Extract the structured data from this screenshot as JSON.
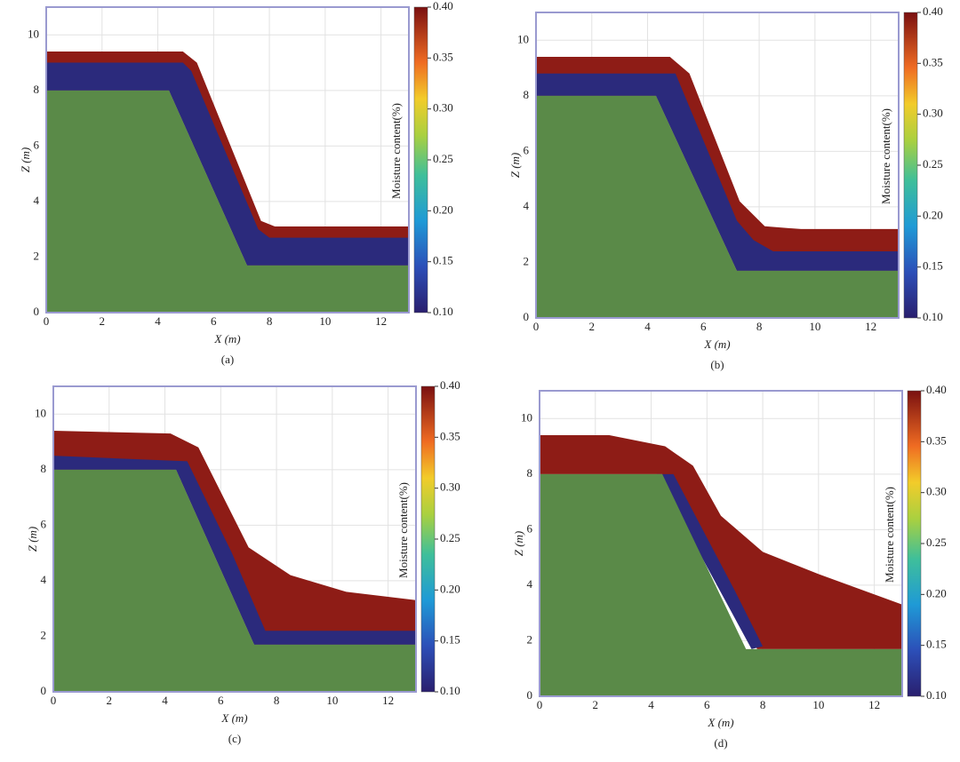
{
  "chart_data": [
    {
      "type": "area",
      "panel_label": "(a)",
      "xlabel": "X (m)",
      "ylabel": "Z (m)",
      "xlim": [
        0,
        13
      ],
      "xticks": [
        0,
        2,
        4,
        6,
        8,
        10,
        12
      ],
      "ylim": [
        0,
        11
      ],
      "yticks": [
        0,
        2,
        4,
        6,
        8,
        10
      ],
      "grid": true,
      "colorbar_label": "Moisture content(%)",
      "colorbar_lim": [
        0.1,
        0.4
      ],
      "colorbar_ticks": [
        {
          "value": 0.1,
          "label": "0.10"
        },
        0.15,
        {
          "value": 0.2,
          "label": "0.20"
        },
        0.25,
        {
          "value": 0.3,
          "label": "0.30"
        },
        0.35,
        {
          "value": 0.4,
          "label": "0.40"
        }
      ],
      "series": [
        {
          "color": "#8e1c16",
          "x": [
            0,
            0,
            4.9,
            5.4,
            7.7,
            8.2,
            13,
            13,
            7.2,
            4.4
          ],
          "values": [
            8,
            9.4,
            9.4,
            9,
            3.3,
            3.1,
            3.1,
            1.7,
            1.7,
            8
          ]
        },
        {
          "color": "#2b2a7c",
          "x": [
            0,
            0,
            4.9,
            5.2,
            7.6,
            8,
            13,
            13,
            7.2,
            4.4
          ],
          "values": [
            8,
            9,
            9,
            8.7,
            3,
            2.7,
            2.7,
            1.7,
            1.7,
            8
          ]
        },
        {
          "color": "#5a8a48",
          "x": [
            0,
            0,
            4.4,
            7.2,
            13,
            13
          ],
          "values": [
            0,
            8,
            8,
            1.7,
            1.7,
            0
          ]
        }
      ]
    },
    {
      "type": "area",
      "panel_label": "(b)",
      "xlabel": "X (m)",
      "ylabel": "Z (m)",
      "xlim": [
        0,
        13
      ],
      "xticks": [
        0,
        2,
        4,
        6,
        8,
        10,
        12
      ],
      "ylim": [
        0,
        11
      ],
      "yticks": [
        0,
        2,
        4,
        6,
        8,
        10
      ],
      "grid": true,
      "colorbar_label": "Moisture content(%)",
      "colorbar_lim": [
        0.1,
        0.4
      ],
      "colorbar_ticks": [
        {
          "value": 0.1,
          "label": "0.10"
        },
        0.15,
        {
          "value": 0.2,
          "label": "0.20"
        },
        0.25,
        {
          "value": 0.3,
          "label": "0.30"
        },
        0.35,
        {
          "value": 0.4,
          "label": "0.40"
        }
      ],
      "series": [
        {
          "color": "#8e1c16",
          "x": [
            0,
            0,
            4.8,
            5.5,
            7.3,
            8.2,
            9.5,
            13,
            13,
            7.2,
            4.3
          ],
          "values": [
            8,
            9.4,
            9.4,
            8.8,
            4.2,
            3.3,
            3.2,
            3.2,
            1.7,
            1.7,
            8
          ]
        },
        {
          "color": "#2b2a7c",
          "x": [
            0,
            0,
            5,
            7.2,
            7.8,
            8.5,
            13,
            13,
            7.2,
            4.3
          ],
          "values": [
            8,
            8.8,
            8.8,
            3.5,
            2.8,
            2.4,
            2.4,
            1.7,
            1.7,
            8
          ]
        },
        {
          "color": "#5a8a48",
          "x": [
            0,
            0,
            4.3,
            7.2,
            13,
            13
          ],
          "values": [
            0,
            8,
            8,
            1.7,
            1.7,
            0
          ]
        }
      ]
    },
    {
      "type": "area",
      "panel_label": "(c)",
      "xlabel": "X (m)",
      "ylabel": "Z (m)",
      "xlim": [
        0,
        13
      ],
      "xticks": [
        0,
        2,
        4,
        6,
        8,
        10,
        12
      ],
      "ylim": [
        0,
        11
      ],
      "yticks": [
        0,
        2,
        4,
        6,
        8,
        10
      ],
      "grid": true,
      "colorbar_label": "Moisture content(%)",
      "colorbar_lim": [
        0.1,
        0.4
      ],
      "colorbar_ticks": [
        {
          "value": 0.1,
          "label": "0.10"
        },
        0.15,
        {
          "value": 0.2,
          "label": "0.20"
        },
        0.25,
        {
          "value": 0.3,
          "label": "0.30"
        },
        0.35,
        {
          "value": 0.4,
          "label": "0.40"
        }
      ],
      "series": [
        {
          "color": "#8e1c16",
          "x": [
            0,
            0,
            4.2,
            5.2,
            6.2,
            7,
            8.5,
            10.5,
            13,
            13,
            7.2,
            4.4
          ],
          "values": [
            8,
            9.4,
            9.3,
            8.8,
            6.8,
            5.2,
            4.2,
            3.6,
            3.3,
            1.7,
            1.7,
            8
          ]
        },
        {
          "color": "#2b2a7c",
          "x": [
            0,
            0,
            4.8,
            6.4,
            7.6,
            8.2,
            13,
            13,
            7.2,
            4.4
          ],
          "values": [
            8,
            8.5,
            8.3,
            5,
            2.2,
            2.2,
            2.2,
            1.7,
            1.7,
            8
          ]
        },
        {
          "color": "#5a8a48",
          "x": [
            0,
            0,
            4.4,
            7.2,
            13,
            13
          ],
          "values": [
            0,
            8,
            8,
            1.7,
            1.7,
            0
          ]
        }
      ]
    },
    {
      "type": "area",
      "panel_label": "(d)",
      "xlabel": "X (m)",
      "ylabel": "Z (m)",
      "xlim": [
        0,
        13
      ],
      "xticks": [
        0,
        2,
        4,
        6,
        8,
        10,
        12
      ],
      "ylim": [
        0,
        11
      ],
      "yticks": [
        0,
        2,
        4,
        6,
        8,
        10
      ],
      "grid": true,
      "colorbar_label": "Moisture content(%)",
      "colorbar_lim": [
        0.1,
        0.4
      ],
      "colorbar_ticks": [
        {
          "value": 0.1,
          "label": "0.10"
        },
        0.15,
        {
          "value": 0.2,
          "label": "0.20"
        },
        0.25,
        {
          "value": 0.3,
          "label": "0.30"
        },
        0.35,
        {
          "value": 0.4,
          "label": "0.40"
        }
      ],
      "series": [
        {
          "color": "#8e1c16",
          "x": [
            0,
            0,
            2.5,
            4.5,
            5.5,
            6.5,
            8,
            10,
            13,
            13,
            7.8,
            4.4
          ],
          "values": [
            8,
            9.4,
            9.4,
            9,
            8.3,
            6.5,
            5.2,
            4.4,
            3.3,
            1.7,
            1.7,
            8
          ]
        },
        {
          "color": "#2b2a7c",
          "x": [
            4.2,
            4.8,
            7,
            8,
            7.6
          ],
          "values": [
            8,
            8,
            3.8,
            1.8,
            1.7
          ]
        },
        {
          "color": "#5a8a48",
          "x": [
            0,
            0,
            4.4,
            7.4,
            13,
            13
          ],
          "values": [
            0,
            8,
            8,
            1.7,
            1.7,
            0
          ]
        }
      ]
    }
  ]
}
